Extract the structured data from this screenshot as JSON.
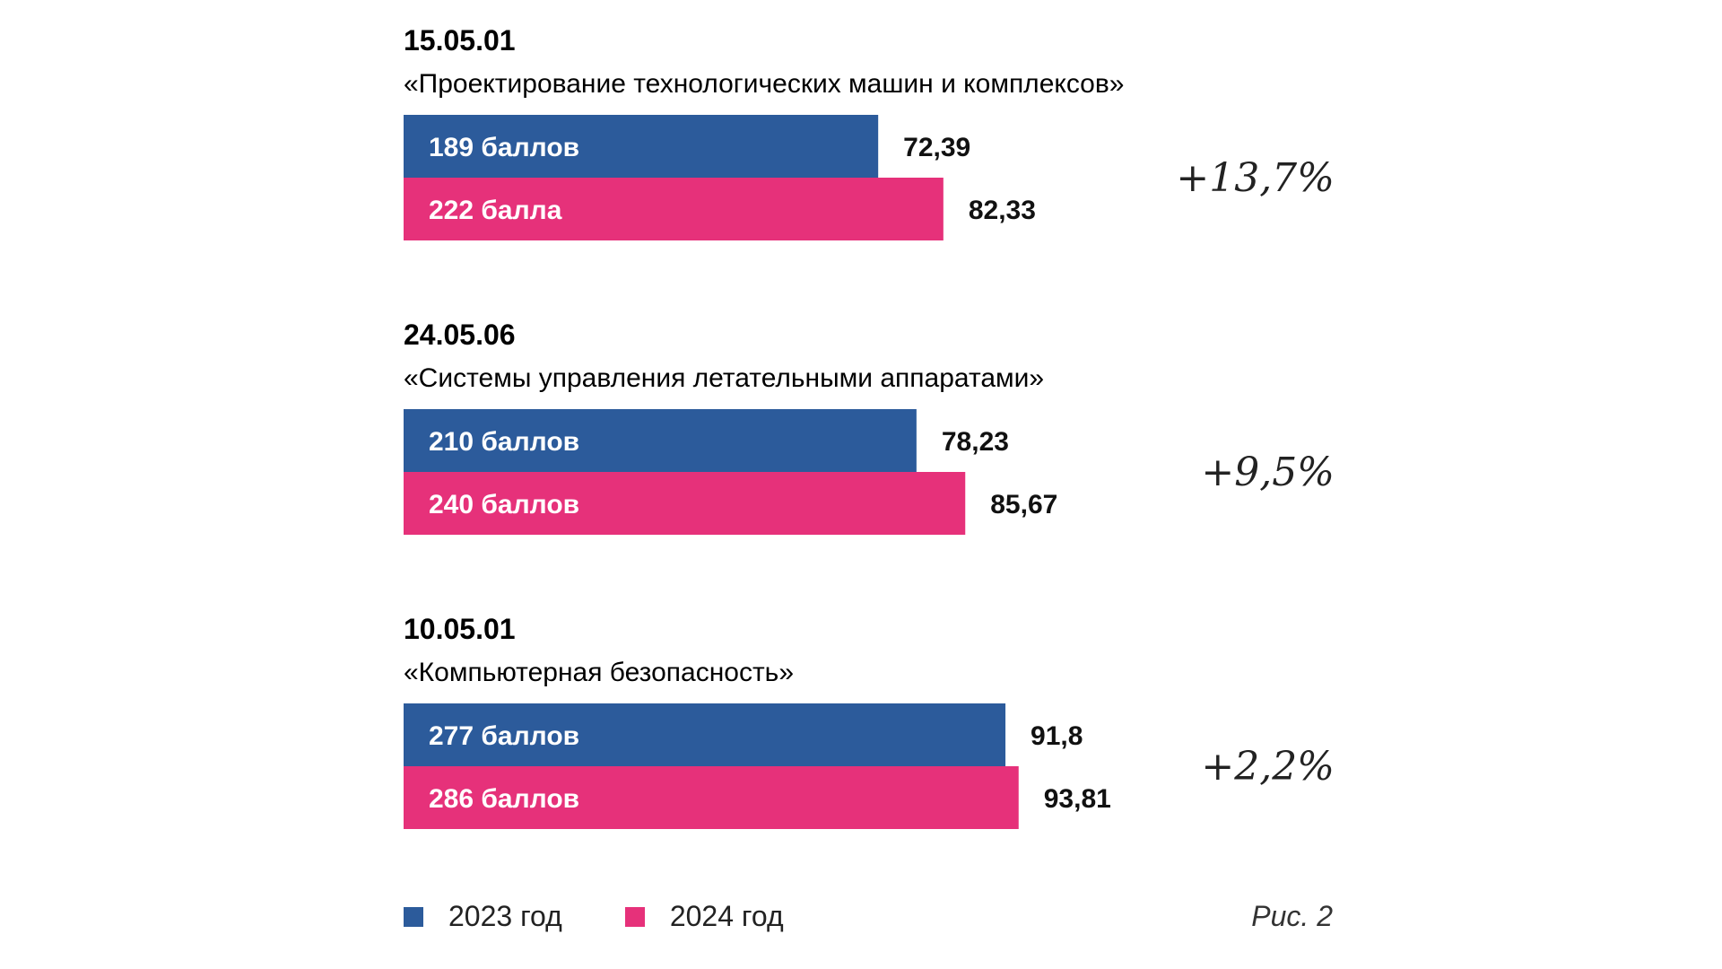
{
  "colors": {
    "series_2023": "#2C5B9B",
    "series_2024": "#E6317A"
  },
  "legend": {
    "items": [
      "2023 год",
      "2024 год"
    ]
  },
  "caption": "Рис. 2",
  "chart_data": {
    "type": "bar",
    "orientation": "horizontal",
    "xlim": [
      0,
      100
    ],
    "series_names": [
      "2023 год",
      "2024 год"
    ],
    "groups": [
      {
        "code": "15.05.01",
        "name": "«Проектирование технологических машин и комплексов»",
        "bars": [
          {
            "series": "2023 год",
            "label": "189 баллов",
            "value": 72.39,
            "value_text": "72,39"
          },
          {
            "series": "2024 год",
            "label": "222 балла",
            "value": 82.33,
            "value_text": "82,33"
          }
        ],
        "change": "+13,7%"
      },
      {
        "code": "24.05.06",
        "name": "«Системы управления летательными аппаратами»",
        "bars": [
          {
            "series": "2023 год",
            "label": "210 баллов",
            "value": 78.23,
            "value_text": "78,23"
          },
          {
            "series": "2024 год",
            "label": "240 баллов",
            "value": 85.67,
            "value_text": "85,67"
          }
        ],
        "change": "+9,5%"
      },
      {
        "code": "10.05.01",
        "name": "«Компьютерная безопасность»",
        "bars": [
          {
            "series": "2023 год",
            "label": "277 баллов",
            "value": 91.8,
            "value_text": "91,8"
          },
          {
            "series": "2024 год",
            "label": "286 баллов",
            "value": 93.81,
            "value_text": "93,81"
          }
        ],
        "change": "+2,2%"
      }
    ]
  }
}
